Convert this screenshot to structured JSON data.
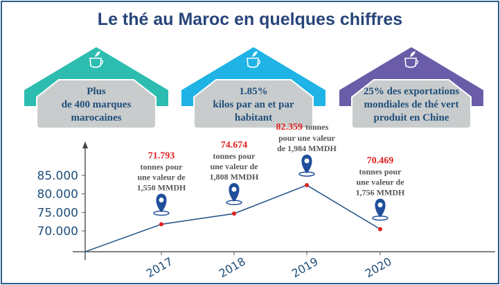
{
  "title": "Le thé au Maroc en quelques chiffres",
  "cards": [
    {
      "lines": [
        "Plus",
        "de 400 marques",
        "marocaines"
      ],
      "color": "#2dbdb0",
      "icon": "tea-cup-icon"
    },
    {
      "lines": [
        "1.85%",
        "kilos par an et par",
        "habitant"
      ],
      "color": "#1fb3e6",
      "icon": "tea-cup-icon"
    },
    {
      "lines": [
        "25% des exportations",
        "mondiales de thé vert",
        "produit en Chine"
      ],
      "color": "#6a5ca8",
      "icon": "tea-cup-icon"
    }
  ],
  "chart_data": {
    "type": "line",
    "categories": [
      "2017",
      "2018",
      "2019",
      "2020"
    ],
    "values": [
      71793,
      74674,
      82359,
      70469
    ],
    "y_ticks": [
      "70.000",
      "75.000",
      "80.000",
      "85.000"
    ],
    "ylim": [
      65000,
      90000
    ],
    "annotations": [
      {
        "value_label": "71.793",
        "lines": [
          "tonnes pour",
          "une valeur de",
          "1,550 MMDH"
        ]
      },
      {
        "value_label": "74.674",
        "lines": [
          "tonnes pour",
          "une valeur de",
          "1,808 MMDH"
        ]
      },
      {
        "value_label": "82.359",
        "suffix": "tonnes",
        "lines": [
          "pour une valeur",
          "de 1,984 MMDH"
        ]
      },
      {
        "value_label": "70.469",
        "lines": [
          "tonnes pour",
          "une valeur de",
          "1,756 MMDH"
        ]
      }
    ],
    "line_color": "#2a5a8c",
    "point_color": "#e02020",
    "marker_icon": "map-pin-icon"
  }
}
